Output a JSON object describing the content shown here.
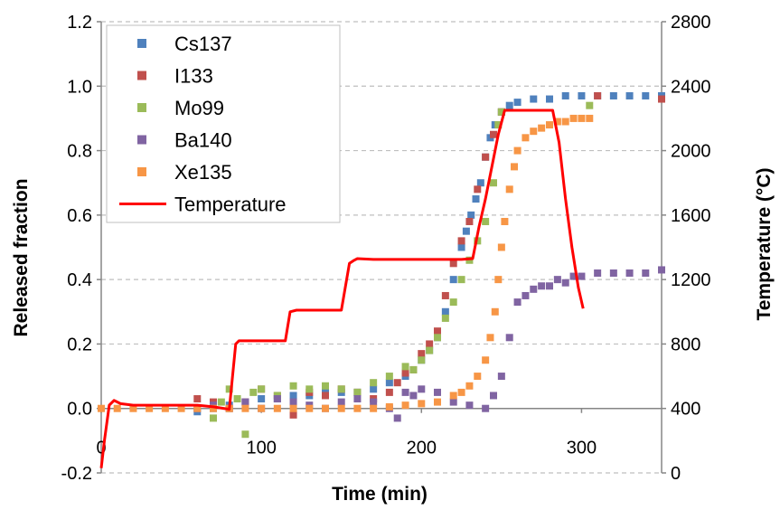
{
  "chart_data": {
    "type": "scatter",
    "xlabel": "Time (min)",
    "ylabel": "Released fraction",
    "y2label": "Temperature (°C)",
    "xlim": [
      0,
      350
    ],
    "ylim": [
      -0.2,
      1.2
    ],
    "y2lim": [
      0,
      2800
    ],
    "xticks": [
      0,
      100,
      200,
      300
    ],
    "yticks": [
      -0.2,
      0.0,
      0.2,
      0.4,
      0.6,
      0.8,
      1.0,
      1.2
    ],
    "y2ticks": [
      0,
      400,
      800,
      1200,
      1600,
      2000,
      2400,
      2800
    ],
    "xtick_labels": [
      "0",
      "100",
      "200",
      "300"
    ],
    "ytick_labels": [
      "-0.2",
      "0.0",
      "0.2",
      "0.4",
      "0.6",
      "0.8",
      "1.0",
      "1.2"
    ],
    "y2tick_labels": [
      "0",
      "400",
      "800",
      "1200",
      "1600",
      "2000",
      "2400",
      "2800"
    ],
    "grid": "horizontal dashed",
    "legend_position": "top-left",
    "series": [
      {
        "name": "Cs137",
        "color": "#4F81BD",
        "marker": "square",
        "points": [
          [
            60,
            -0.01
          ],
          [
            70,
            0.0
          ],
          [
            80,
            0.01
          ],
          [
            90,
            0.02
          ],
          [
            100,
            0.03
          ],
          [
            110,
            0.03
          ],
          [
            120,
            0.04
          ],
          [
            130,
            0.04
          ],
          [
            140,
            0.05
          ],
          [
            150,
            0.05
          ],
          [
            160,
            0.05
          ],
          [
            170,
            0.06
          ],
          [
            180,
            0.08
          ],
          [
            190,
            0.1
          ],
          [
            200,
            0.15
          ],
          [
            205,
            0.18
          ],
          [
            210,
            0.22
          ],
          [
            215,
            0.3
          ],
          [
            220,
            0.4
          ],
          [
            225,
            0.5
          ],
          [
            228,
            0.55
          ],
          [
            231,
            0.6
          ],
          [
            234,
            0.65
          ],
          [
            237,
            0.7
          ],
          [
            240,
            0.78
          ],
          [
            243,
            0.84
          ],
          [
            246,
            0.88
          ],
          [
            250,
            0.92
          ],
          [
            255,
            0.94
          ],
          [
            260,
            0.95
          ],
          [
            270,
            0.96
          ],
          [
            280,
            0.96
          ],
          [
            290,
            0.97
          ],
          [
            300,
            0.97
          ],
          [
            310,
            0.97
          ],
          [
            320,
            0.97
          ],
          [
            330,
            0.97
          ],
          [
            340,
            0.97
          ],
          [
            350,
            0.97
          ]
        ]
      },
      {
        "name": "I133",
        "color": "#C0504D",
        "marker": "square",
        "points": [
          [
            60,
            0.03
          ],
          [
            70,
            0.02
          ],
          [
            80,
            0.0
          ],
          [
            90,
            0.02
          ],
          [
            100,
            0.06
          ],
          [
            110,
            0.04
          ],
          [
            120,
            -0.02
          ],
          [
            130,
            0.05
          ],
          [
            140,
            0.04
          ],
          [
            150,
            0.06
          ],
          [
            160,
            0.05
          ],
          [
            170,
            0.03
          ],
          [
            180,
            0.05
          ],
          [
            185,
            0.08
          ],
          [
            190,
            0.11
          ],
          [
            195,
            0.12
          ],
          [
            200,
            0.17
          ],
          [
            205,
            0.2
          ],
          [
            210,
            0.24
          ],
          [
            215,
            0.35
          ],
          [
            220,
            0.45
          ],
          [
            225,
            0.52
          ],
          [
            230,
            0.58
          ],
          [
            235,
            0.68
          ],
          [
            240,
            0.78
          ],
          [
            245,
            0.85
          ],
          [
            250,
            0.92
          ],
          [
            310,
            0.97
          ],
          [
            350,
            0.96
          ]
        ]
      },
      {
        "name": "Mo99",
        "color": "#9BBB59",
        "marker": "square",
        "points": [
          [
            70,
            -0.03
          ],
          [
            75,
            0.02
          ],
          [
            80,
            0.06
          ],
          [
            85,
            0.03
          ],
          [
            90,
            -0.08
          ],
          [
            95,
            0.05
          ],
          [
            100,
            0.06
          ],
          [
            110,
            0.04
          ],
          [
            120,
            0.07
          ],
          [
            130,
            0.06
          ],
          [
            140,
            0.07
          ],
          [
            150,
            0.06
          ],
          [
            160,
            0.05
          ],
          [
            170,
            0.08
          ],
          [
            180,
            0.1
          ],
          [
            190,
            0.13
          ],
          [
            195,
            0.12
          ],
          [
            200,
            0.15
          ],
          [
            205,
            0.18
          ],
          [
            210,
            0.22
          ],
          [
            215,
            0.28
          ],
          [
            220,
            0.33
          ],
          [
            225,
            0.4
          ],
          [
            230,
            0.46
          ],
          [
            235,
            0.52
          ],
          [
            240,
            0.58
          ],
          [
            245,
            0.7
          ],
          [
            248,
            0.88
          ],
          [
            250,
            0.92
          ],
          [
            305,
            0.94
          ]
        ]
      },
      {
        "name": "Ba140",
        "color": "#8064A2",
        "marker": "square",
        "points": [
          [
            60,
            0.0
          ],
          [
            70,
            0.01
          ],
          [
            80,
            0.0
          ],
          [
            90,
            0.02
          ],
          [
            100,
            0.0
          ],
          [
            110,
            0.03
          ],
          [
            120,
            0.02
          ],
          [
            130,
            0.01
          ],
          [
            140,
            0.0
          ],
          [
            150,
            0.02
          ],
          [
            160,
            0.03
          ],
          [
            170,
            0.02
          ],
          [
            180,
            0.0
          ],
          [
            185,
            -0.03
          ],
          [
            190,
            0.05
          ],
          [
            195,
            0.04
          ],
          [
            200,
            0.06
          ],
          [
            210,
            0.05
          ],
          [
            220,
            0.02
          ],
          [
            230,
            0.01
          ],
          [
            240,
            0.0
          ],
          [
            245,
            0.04
          ],
          [
            250,
            0.1
          ],
          [
            255,
            0.22
          ],
          [
            260,
            0.33
          ],
          [
            265,
            0.35
          ],
          [
            270,
            0.37
          ],
          [
            275,
            0.38
          ],
          [
            280,
            0.38
          ],
          [
            285,
            0.4
          ],
          [
            290,
            0.39
          ],
          [
            295,
            0.41
          ],
          [
            300,
            0.41
          ],
          [
            310,
            0.42
          ],
          [
            320,
            0.42
          ],
          [
            330,
            0.42
          ],
          [
            340,
            0.42
          ],
          [
            350,
            0.43
          ]
        ]
      },
      {
        "name": "Xe135",
        "color": "#F79646",
        "marker": "square",
        "points": [
          [
            0,
            0.0
          ],
          [
            10,
            0.0
          ],
          [
            20,
            0.0
          ],
          [
            30,
            0.0
          ],
          [
            40,
            0.0
          ],
          [
            50,
            0.0
          ],
          [
            60,
            0.0
          ],
          [
            70,
            0.0
          ],
          [
            80,
            0.0
          ],
          [
            90,
            0.0
          ],
          [
            100,
            0.0
          ],
          [
            110,
            0.0
          ],
          [
            120,
            0.0
          ],
          [
            130,
            0.0
          ],
          [
            140,
            0.0
          ],
          [
            150,
            0.0
          ],
          [
            160,
            0.0
          ],
          [
            170,
            0.0
          ],
          [
            180,
            0.005
          ],
          [
            190,
            0.01
          ],
          [
            200,
            0.015
          ],
          [
            210,
            0.02
          ],
          [
            220,
            0.04
          ],
          [
            225,
            0.05
          ],
          [
            230,
            0.07
          ],
          [
            235,
            0.1
          ],
          [
            240,
            0.15
          ],
          [
            243,
            0.22
          ],
          [
            246,
            0.3
          ],
          [
            248,
            0.4
          ],
          [
            250,
            0.5
          ],
          [
            252,
            0.58
          ],
          [
            255,
            0.68
          ],
          [
            258,
            0.75
          ],
          [
            260,
            0.8
          ],
          [
            265,
            0.84
          ],
          [
            270,
            0.86
          ],
          [
            275,
            0.87
          ],
          [
            280,
            0.88
          ],
          [
            285,
            0.89
          ],
          [
            290,
            0.89
          ],
          [
            295,
            0.9
          ],
          [
            300,
            0.9
          ],
          [
            305,
            0.9
          ]
        ]
      }
    ],
    "temperature": {
      "name": "Temperature",
      "color": "#FF0000",
      "axis": "secondary",
      "points": [
        [
          0,
          30
        ],
        [
          2,
          200
        ],
        [
          5,
          420
        ],
        [
          8,
          450
        ],
        [
          12,
          430
        ],
        [
          20,
          420
        ],
        [
          40,
          420
        ],
        [
          60,
          420
        ],
        [
          70,
          410
        ],
        [
          80,
          395
        ],
        [
          84,
          800
        ],
        [
          86,
          820
        ],
        [
          100,
          820
        ],
        [
          115,
          820
        ],
        [
          118,
          1000
        ],
        [
          122,
          1010
        ],
        [
          150,
          1010
        ],
        [
          155,
          1300
        ],
        [
          158,
          1320
        ],
        [
          160,
          1330
        ],
        [
          170,
          1325
        ],
        [
          200,
          1325
        ],
        [
          225,
          1325
        ],
        [
          232,
          1330
        ],
        [
          236,
          1530
        ],
        [
          240,
          1700
        ],
        [
          244,
          1900
        ],
        [
          248,
          2100
        ],
        [
          252,
          2250
        ],
        [
          260,
          2250
        ],
        [
          270,
          2250
        ],
        [
          282,
          2250
        ],
        [
          286,
          2050
        ],
        [
          290,
          1700
        ],
        [
          294,
          1400
        ],
        [
          298,
          1150
        ],
        [
          301,
          1020
        ]
      ]
    }
  }
}
